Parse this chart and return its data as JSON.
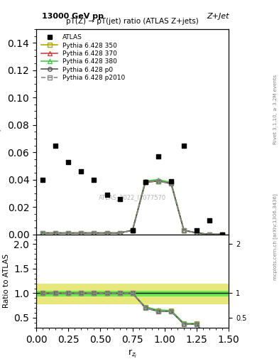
{
  "title_top": "13000 GeV pp",
  "title_right": "Z+Jet",
  "plot_title": "pT(Z) → pT(jet) ratio (ATLAS Z+jets)",
  "ylabel_main": "dσ/dr$_{z_j}$ [pb]",
  "ylabel_ratio": "Ratio to ATLAS",
  "xlabel": "r$_{z_j}$",
  "watermark": "ATLAS_2022_I2077570",
  "right_label": "Rivet 3.1.10, ≥ 3.2M events",
  "right_label2": "mcplots.cern.ch [arXiv:1306.3436]",
  "xlim": [
    0,
    1.5
  ],
  "ylim_main": [
    0,
    0.15
  ],
  "ylim_ratio": [
    0.3,
    2.2
  ],
  "x_centers": [
    0.05,
    0.15,
    0.25,
    0.35,
    0.45,
    0.55,
    0.65,
    0.75,
    0.85,
    0.95,
    1.05,
    1.15,
    1.25,
    1.35,
    1.45
  ],
  "x_edges": [
    0.0,
    0.1,
    0.2,
    0.3,
    0.4,
    0.5,
    0.6,
    0.7,
    0.8,
    0.9,
    1.0,
    1.1,
    1.2,
    1.3,
    1.4,
    1.5
  ],
  "atlas_y": [
    0.04,
    0.065,
    0.053,
    0.046,
    0.04,
    0.029,
    0.026,
    0.003,
    0.038,
    0.057,
    0.039,
    0.065,
    0.003,
    0.01,
    0.0
  ],
  "py350_y": [
    0.001,
    0.001,
    0.001,
    0.001,
    0.001,
    0.001,
    0.001,
    0.003,
    0.038,
    0.039,
    0.038,
    0.003,
    0.001,
    0.0,
    0.0
  ],
  "py370_y": [
    0.001,
    0.001,
    0.001,
    0.001,
    0.001,
    0.001,
    0.001,
    0.003,
    0.039,
    0.039,
    0.038,
    0.003,
    0.001,
    0.0,
    0.0
  ],
  "py380_y": [
    0.001,
    0.001,
    0.001,
    0.001,
    0.001,
    0.001,
    0.001,
    0.003,
    0.039,
    0.04,
    0.038,
    0.003,
    0.001,
    0.0,
    0.0
  ],
  "pyp0_y": [
    0.001,
    0.001,
    0.001,
    0.001,
    0.001,
    0.001,
    0.001,
    0.003,
    0.038,
    0.039,
    0.037,
    0.003,
    0.001,
    0.0,
    0.0
  ],
  "pyp2010_y": [
    0.001,
    0.001,
    0.001,
    0.001,
    0.001,
    0.001,
    0.001,
    0.003,
    0.038,
    0.039,
    0.037,
    0.003,
    0.001,
    0.0,
    0.0
  ],
  "ratio_350": [
    1.0,
    1.0,
    1.0,
    1.0,
    1.0,
    1.0,
    1.0,
    1.0,
    0.72,
    0.65,
    0.64,
    0.38,
    0.38,
    0.0,
    0.0
  ],
  "ratio_370": [
    1.0,
    1.0,
    1.0,
    1.0,
    1.0,
    1.0,
    1.0,
    1.0,
    0.71,
    0.65,
    0.64,
    0.38,
    0.38,
    0.0,
    0.0
  ],
  "ratio_380": [
    1.0,
    1.0,
    1.0,
    1.0,
    1.0,
    1.0,
    1.0,
    1.0,
    0.72,
    0.66,
    0.65,
    0.39,
    0.38,
    0.0,
    0.0
  ],
  "ratio_p0": [
    1.0,
    1.0,
    1.0,
    1.0,
    1.0,
    1.0,
    1.0,
    1.0,
    0.7,
    0.63,
    0.63,
    0.37,
    0.37,
    0.0,
    0.0
  ],
  "ratio_p2010": [
    1.0,
    1.0,
    1.0,
    1.0,
    1.0,
    1.0,
    1.0,
    1.0,
    0.7,
    0.63,
    0.63,
    0.37,
    0.37,
    0.0,
    0.0
  ],
  "band_inner_lo": 0.93,
  "band_inner_hi": 1.05,
  "band_outer_lo": 0.78,
  "band_outer_hi": 1.2,
  "color_350": "#aaaa00",
  "color_370": "#cc4444",
  "color_380": "#44cc44",
  "color_p0": "#555555",
  "color_p2010": "#888888",
  "band_inner_color": "#44ee44",
  "band_outer_color": "#dddd44"
}
